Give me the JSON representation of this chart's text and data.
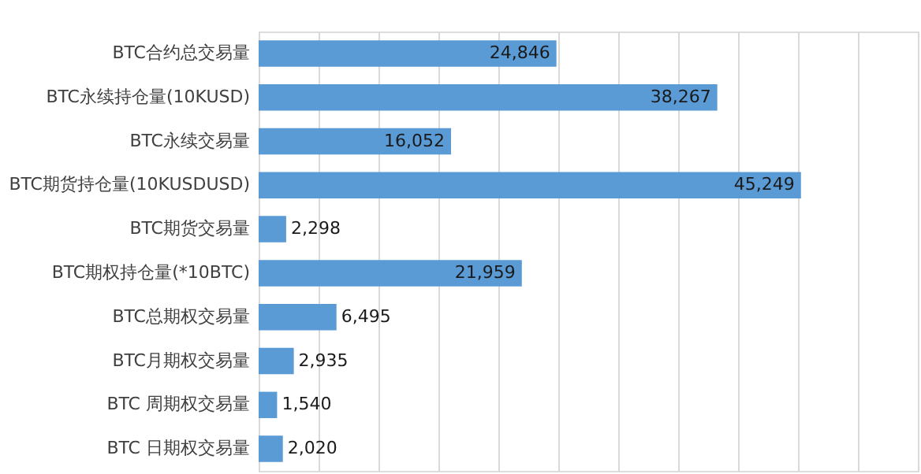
{
  "chart_data": {
    "type": "bar",
    "orientation": "horizontal",
    "categories": [
      "BTC合约总交易量",
      "BTC永续持仓量(10KUSD)",
      "BTC永续交易量",
      "BTC期货持仓量(10KUSDUSD)",
      "BTC期货交易量",
      "BTC期权持仓量(*10BTC)",
      "BTC总期权交易量",
      "BTC月期权交易量",
      "BTC  周期权交易量",
      "BTC  日期权交易量"
    ],
    "values": [
      24846,
      38267,
      16052,
      45249,
      2298,
      21959,
      6495,
      2935,
      1540,
      2020
    ],
    "value_labels": [
      "24,846",
      "38,267",
      "16,052",
      "45,249",
      "2,298",
      "21,959",
      "6,495",
      "2,935",
      "1,540",
      "2,020"
    ],
    "color": "#5b9bd5",
    "grid": "x",
    "tick_labels": "y"
  }
}
